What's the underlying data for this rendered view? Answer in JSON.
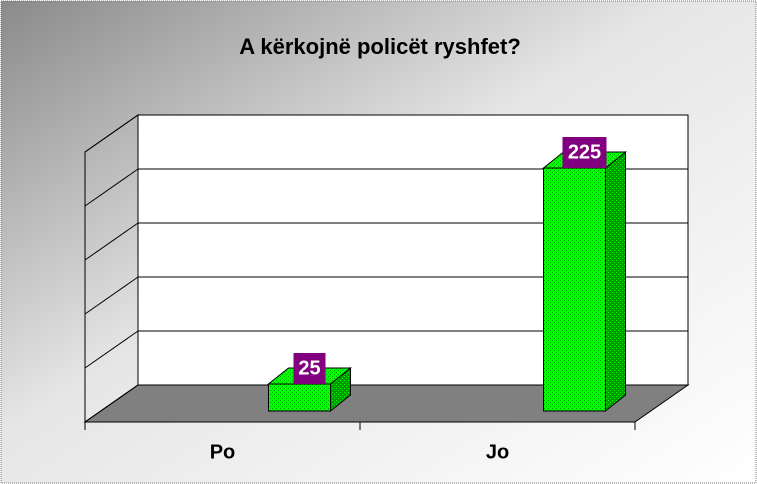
{
  "chart_data": {
    "type": "bar3d",
    "title": "A kërkojnë policët ryshfet?",
    "categories": [
      "Po",
      "Jo"
    ],
    "values": [
      25,
      225
    ],
    "color": "#00ff00",
    "ylim": [
      0,
      250
    ],
    "yticks": [
      0,
      50,
      100,
      150,
      200,
      250
    ],
    "grid": true
  }
}
